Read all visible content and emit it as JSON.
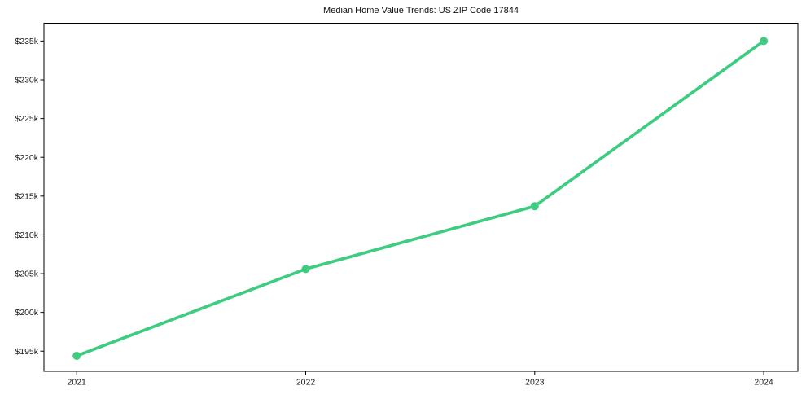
{
  "page": {
    "background": "#ffffff"
  },
  "chart_data": {
    "type": "line",
    "title": "Median Home Value Trends: US ZIP Code 17844",
    "xlabel": "",
    "ylabel": "",
    "grid": false,
    "legend": "none",
    "x": [
      2021,
      2022,
      2023,
      2024
    ],
    "x_tick_labels": [
      "2021",
      "2022",
      "2023",
      "2024"
    ],
    "series": [
      {
        "name": "median-home-value",
        "values": [
          194400,
          205600,
          213700,
          235000
        ],
        "color": "#3dcc80",
        "marker": "circle"
      }
    ],
    "y_ticks": [
      195000,
      200000,
      205000,
      210000,
      215000,
      220000,
      225000,
      230000,
      235000
    ],
    "y_tick_labels": [
      "$195k",
      "$200k",
      "$205k",
      "$210k",
      "$215k",
      "$220k",
      "$225k",
      "$230k",
      "$235k"
    ],
    "ylim": [
      192400,
      237300
    ],
    "xlim": [
      2020.857,
      2024.149
    ],
    "axis_color": "#000000",
    "text_color": "#1a1a1a"
  }
}
